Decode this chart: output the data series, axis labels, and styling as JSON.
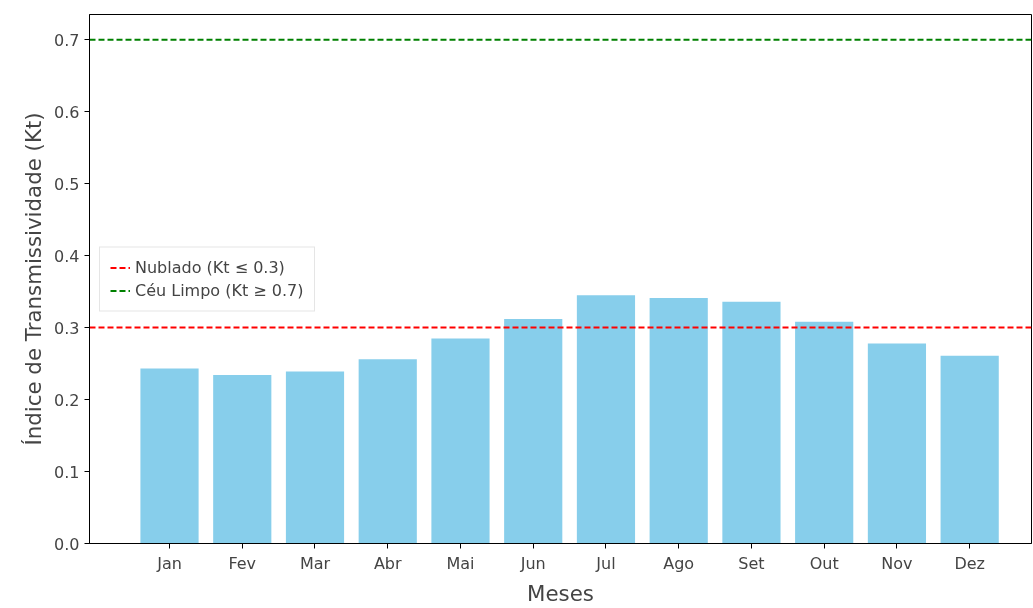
{
  "chart_data": {
    "type": "bar",
    "xlabel": "Meses",
    "ylabel": "Índice de Transmissividade (Kt)",
    "categories": [
      "Jan",
      "Fev",
      "Mar",
      "Abr",
      "Mai",
      "Jun",
      "Jul",
      "Ago",
      "Set",
      "Out",
      "Nov",
      "Dez"
    ],
    "values": [
      0.243,
      0.234,
      0.239,
      0.256,
      0.285,
      0.312,
      0.345,
      0.341,
      0.336,
      0.308,
      0.278,
      0.261
    ],
    "color": "#87ceeb",
    "ylim": [
      0,
      0.735
    ],
    "yticks": [
      {
        "value": 0,
        "label": "0.0"
      },
      0.1,
      0.2,
      0.3,
      0.4,
      0.5,
      0.6,
      0.7
    ],
    "ref_lines": [
      {
        "axis": "y",
        "value": 0.3,
        "label": "Nublado (Kt ≤ 0.3)",
        "color": "#ff0000",
        "line_style": "dashed"
      },
      {
        "axis": "y",
        "value": 0.7,
        "label": "Céu Limpo (Kt ≥ 0.7)",
        "color": "#008000",
        "line_style": "dashed"
      }
    ],
    "grid": false,
    "legend": "left"
  }
}
